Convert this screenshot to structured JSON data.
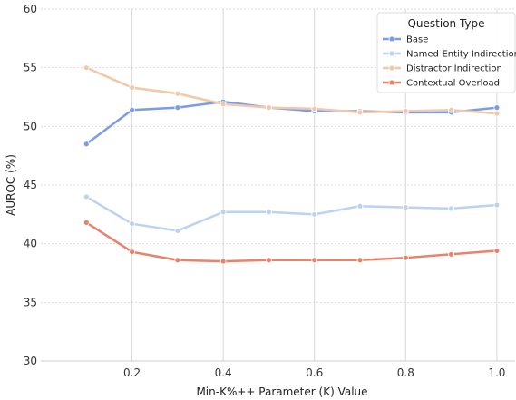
{
  "chart_data": {
    "type": "line",
    "xlabel": "Min-K%++ Parameter (K) Value",
    "ylabel": "AUROC (%)",
    "xlim": [
      0.1,
      1.0
    ],
    "ylim": [
      30,
      60
    ],
    "xticks": [
      0.2,
      0.4,
      0.6,
      0.8,
      1.0
    ],
    "xtick_labels": [
      "0.2",
      "0.4",
      "0.6",
      "0.8",
      "1.0"
    ],
    "yticks": [
      30,
      35,
      40,
      45,
      50,
      55,
      60
    ],
    "ytick_labels": [
      "30",
      "35",
      "40",
      "45",
      "50",
      "55",
      "60"
    ],
    "grid": true,
    "legend_title": "Question Type",
    "legend_position": "top-right",
    "x": [
      0.1,
      0.2,
      0.3,
      0.4,
      0.5,
      0.6,
      0.7,
      0.8,
      0.9,
      1.0
    ],
    "series": [
      {
        "name": "Base",
        "color": "#7b9ce8",
        "values": [
          48.5,
          51.4,
          51.6,
          52.1,
          51.6,
          51.3,
          51.3,
          51.2,
          51.2,
          51.6
        ]
      },
      {
        "name": "Named-Entity Indirection",
        "color": "#bcd3f0",
        "values": [
          44.0,
          41.7,
          41.1,
          42.7,
          42.7,
          42.5,
          43.2,
          43.1,
          43.0,
          43.3
        ]
      },
      {
        "name": "Distractor Indirection",
        "color": "#f0c8aa",
        "values": [
          55.0,
          53.3,
          52.8,
          51.9,
          51.6,
          51.5,
          51.2,
          51.3,
          51.4,
          51.1
        ]
      },
      {
        "name": "Contextual Overload",
        "color": "#e8826a",
        "values": [
          41.8,
          39.3,
          38.6,
          38.5,
          38.6,
          38.6,
          38.6,
          38.8,
          39.1,
          39.4
        ]
      }
    ]
  }
}
